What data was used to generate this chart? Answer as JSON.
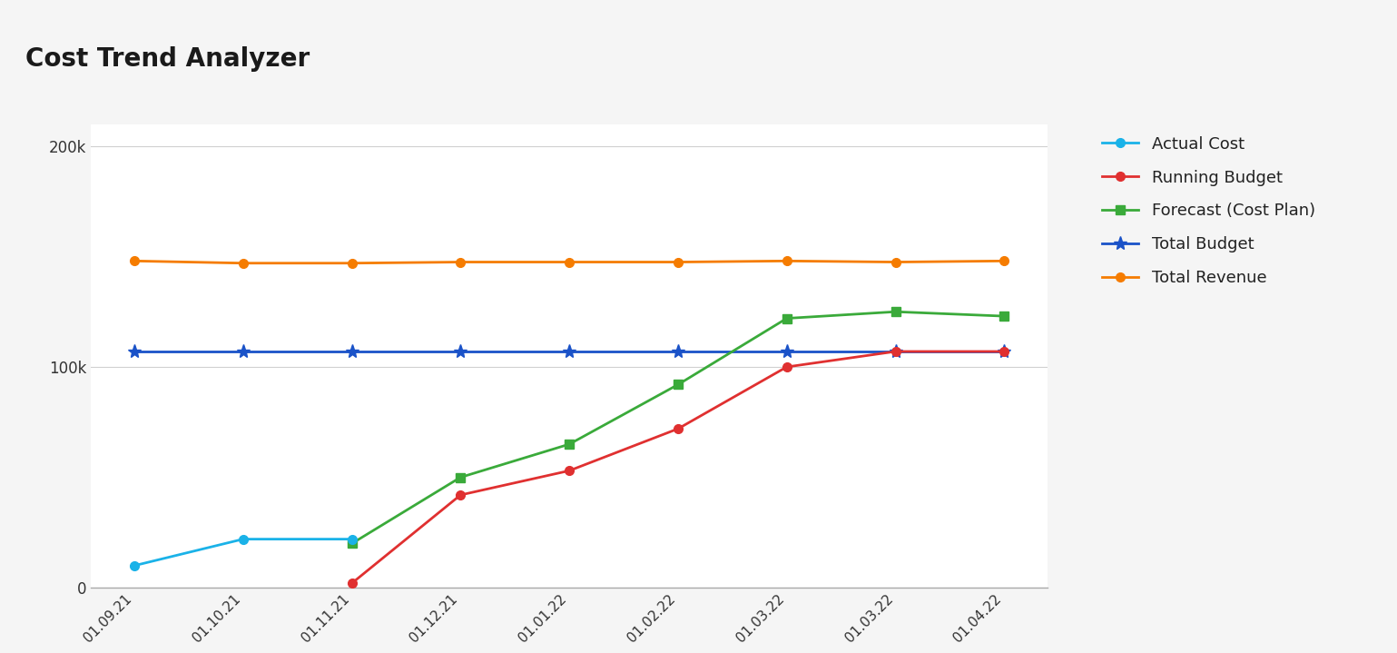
{
  "title": "Cost Trend Analyzer",
  "title_bg_color": "#ebebeb",
  "plot_bg_color": "#ffffff",
  "fig_bg_color": "#f5f5f5",
  "x_labels": [
    "01.09.21",
    "01.10.21",
    "01.11.21",
    "01.12.21",
    "01.01.22",
    "01.02.22",
    "01.03.22",
    "01.03.22",
    "01.04.22"
  ],
  "series": {
    "Actual Cost": {
      "values": [
        10000,
        22000,
        22000,
        null,
        null,
        null,
        null,
        null,
        null
      ],
      "color": "#1ab2e8",
      "marker": "o",
      "linewidth": 2.0,
      "markersize": 7,
      "zorder": 5
    },
    "Running Budget": {
      "values": [
        null,
        null,
        2000,
        42000,
        53000,
        72000,
        100000,
        107000,
        107000
      ],
      "color": "#e03030",
      "marker": "o",
      "linewidth": 2.0,
      "markersize": 7,
      "zorder": 5
    },
    "Forecast (Cost Plan)": {
      "values": [
        null,
        null,
        20000,
        50000,
        65000,
        92000,
        122000,
        125000,
        123000
      ],
      "color": "#3aaa3a",
      "marker": "s",
      "linewidth": 2.0,
      "markersize": 7,
      "zorder": 5
    },
    "Total Budget": {
      "values": [
        107000,
        107000,
        107000,
        107000,
        107000,
        107000,
        107000,
        107000,
        107000
      ],
      "color": "#1a52c8",
      "marker": "*",
      "linewidth": 2.0,
      "markersize": 11,
      "zorder": 4
    },
    "Total Revenue": {
      "values": [
        148000,
        147000,
        147000,
        147500,
        147500,
        147500,
        148000,
        147500,
        148000
      ],
      "color": "#f57c00",
      "marker": "o",
      "linewidth": 2.0,
      "markersize": 7,
      "zorder": 4
    }
  },
  "ylim": [
    0,
    210000
  ],
  "yticks": [
    0,
    100000,
    200000
  ],
  "ytick_labels": [
    "0",
    "100k",
    "200k"
  ],
  "grid_color": "#d0d0d0",
  "axis_color": "#aaaaaa",
  "legend_fontsize": 13,
  "title_fontsize": 20,
  "tick_fontsize": 11
}
